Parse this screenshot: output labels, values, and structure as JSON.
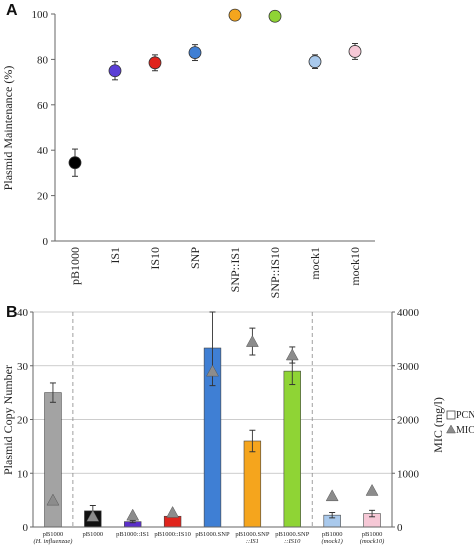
{
  "chart_data": [
    {
      "type": "scatter",
      "panel_label": "A",
      "ylabel": "Plasmid Maintenance (%)",
      "ylim": [
        0,
        100
      ],
      "yticks": [
        0,
        20,
        40,
        60,
        80,
        100
      ],
      "grid": false,
      "categories": [
        "pB1000",
        "IS1",
        "IS10",
        "SNP",
        "SNP::IS1",
        "SNP::IS10",
        "mock1",
        "mock10"
      ],
      "values": [
        34.5,
        75,
        78.5,
        83,
        99.5,
        99,
        79,
        83.5
      ],
      "errors": [
        6,
        4,
        3.5,
        3.5,
        0,
        0,
        3,
        3.5
      ],
      "colors": [
        "#000000",
        "#5b3fd6",
        "#e0241c",
        "#3f7fd4",
        "#f5a51d",
        "#8fd435",
        "#a9c9ec",
        "#f6c8d6"
      ]
    },
    {
      "type": "bar",
      "panel_label": "B",
      "ylabel": "Plasmid Copy Number",
      "y2label": "MIC (mg/l)",
      "ylim": [
        0,
        40
      ],
      "yticks": [
        0,
        10,
        20,
        30,
        40
      ],
      "y2lim": [
        0,
        4000
      ],
      "y2ticks": [
        0,
        1000,
        2000,
        3000,
        4000
      ],
      "grid": true,
      "legend_position": "right",
      "legend": [
        "PCN",
        "MIC"
      ],
      "categories": [
        {
          "line1": "pB1000",
          "line2": "(H. influenzae)"
        },
        {
          "line1": "pB1000",
          "line2": ""
        },
        {
          "line1": "pB1000::IS1",
          "line2": ""
        },
        {
          "line1": "pB1000::IS10",
          "line2": ""
        },
        {
          "line1": "pB1000.SNP",
          "line2": ""
        },
        {
          "line1": "pB1000.SNP",
          "line2": "::IS1"
        },
        {
          "line1": "pB1000.SNP",
          "line2": "::IS10"
        },
        {
          "line1": "pB1000",
          "line2": "(mock1)"
        },
        {
          "line1": "pB1000",
          "line2": "(mock10)"
        }
      ],
      "series": [
        {
          "name": "PCN",
          "values": [
            25,
            3,
            1,
            2,
            33.3,
            16,
            29,
            2.2,
            2.5
          ],
          "errors": [
            1.8,
            1.0,
            0.2,
            0.1,
            7,
            2,
            2.5,
            0.5,
            0.6
          ],
          "colors": [
            "#a3a3a3",
            "#111111",
            "#5b2fc9",
            "#e0241c",
            "#3f7fd4",
            "#f5a51d",
            "#8fd435",
            "#a9c9ec",
            "#f6c8d6"
          ]
        },
        {
          "name": "MIC",
          "values": [
            500,
            200,
            220,
            270,
            2900,
            3450,
            3200,
            580,
            680
          ],
          "errors": [
            0,
            0,
            0,
            0,
            0,
            250,
            150,
            0,
            0
          ]
        }
      ]
    }
  ]
}
